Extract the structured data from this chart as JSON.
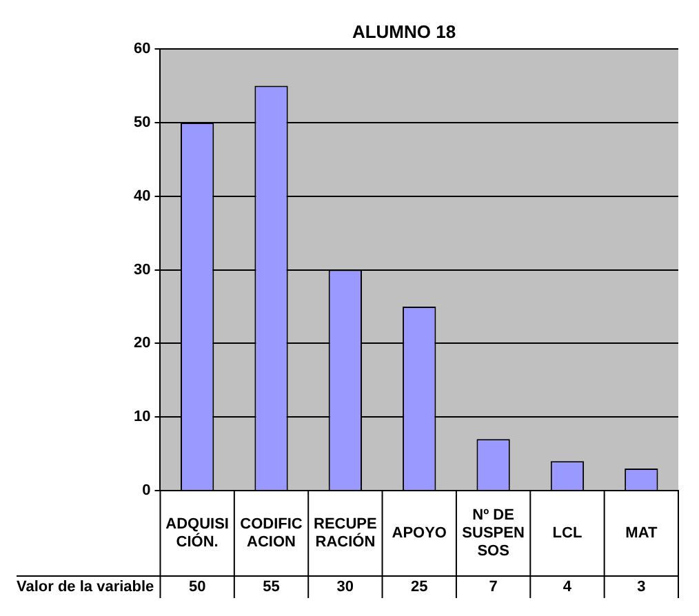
{
  "chart_data": {
    "type": "bar",
    "title": "ALUMNO 18",
    "categories": [
      "ADQUISICIÓN.",
      "CODIFICACION",
      "RECUPERACIÓN",
      "APOYO",
      "Nº DE SUSPENSOS",
      "LCL",
      "MAT"
    ],
    "series": [
      {
        "name": "Valor de la variable",
        "color": "#9999ff",
        "values": [
          50,
          55,
          30,
          25,
          7,
          4,
          3
        ]
      }
    ],
    "ylim": [
      0,
      60
    ],
    "yticks": [
      0,
      10,
      20,
      30,
      40,
      50,
      60
    ],
    "grid": "y",
    "data_labels": true,
    "legend": false
  }
}
